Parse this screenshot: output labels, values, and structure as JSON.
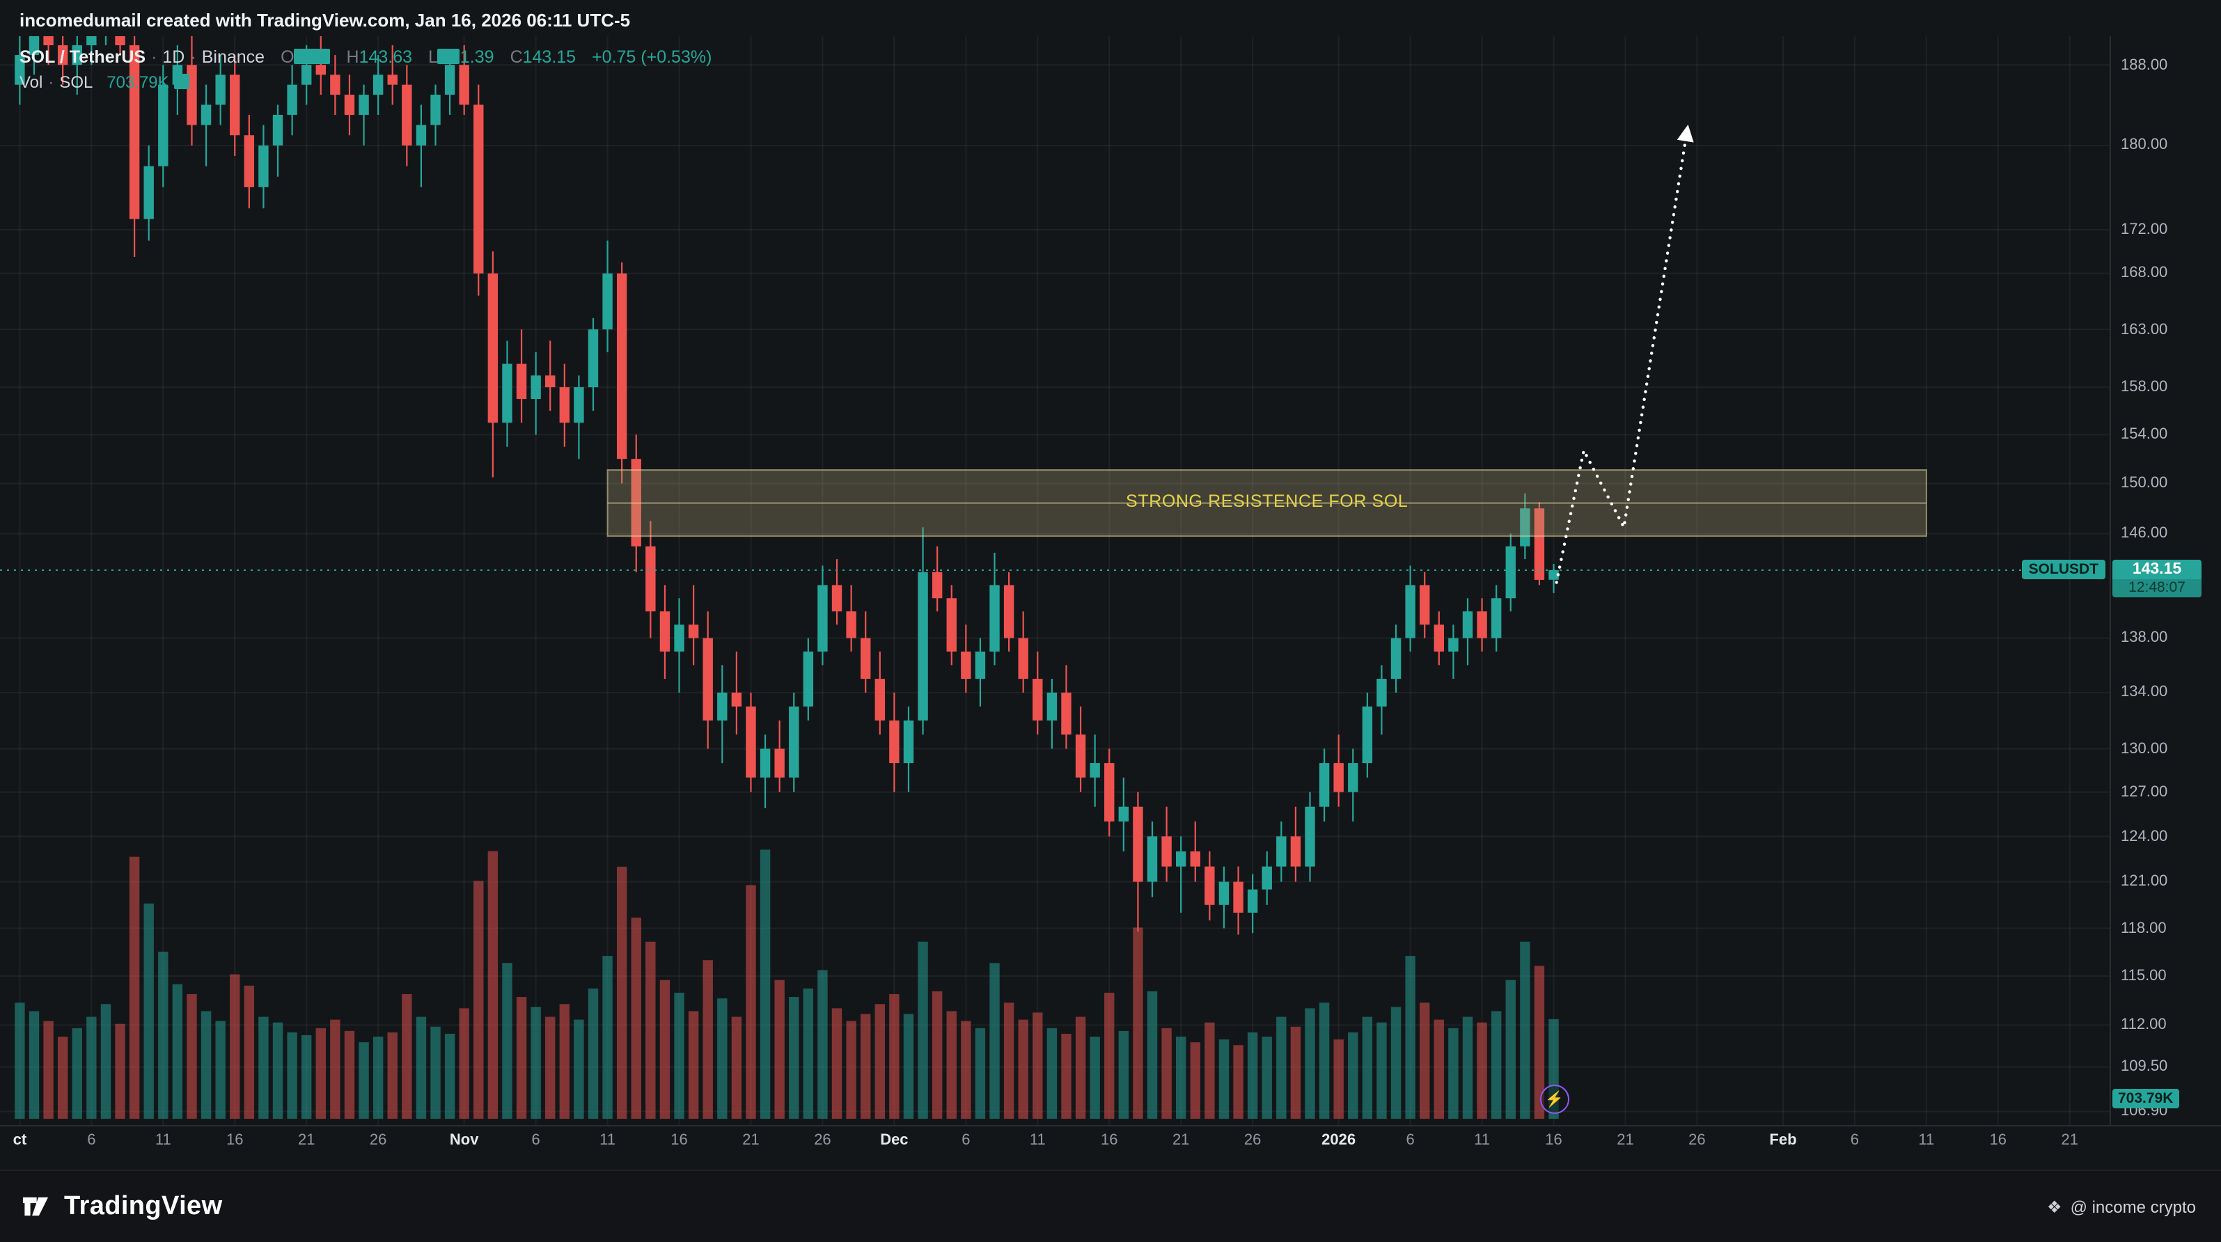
{
  "header": {
    "title": "incomedumail created with TradingView.com, Jan 16, 2026 06:11 UTC-5"
  },
  "legend": {
    "symbol": "SOL / TetherUS",
    "separator": "·",
    "timeframe": "1D",
    "exchange": "Binance",
    "o_label": "O",
    "h_label": "H",
    "h_value": "143.63",
    "l_label": "L",
    "l_value_visible": "1.39",
    "c_label": "C",
    "c_value": "143.15",
    "change": "+0.75 (+0.53%)",
    "vol_label": "Vol",
    "vol_symbol": "SOL",
    "vol_value": "703.79K"
  },
  "colors": {
    "up": "#26a69a",
    "down": "#ef5350",
    "vol_up": "rgba(38,166,154,0.5)",
    "vol_down": "rgba(239,83,80,0.5)",
    "accent": "#26a69a",
    "projection": "#ffffff",
    "box_fill": "rgba(170,160,115,0.32)",
    "box_edge": "rgba(225,215,160,0.55)",
    "resistance_text": "#e5d44a"
  },
  "price_axis": {
    "labels": [
      {
        "text": "188.00",
        "price": 188
      },
      {
        "text": "180.00",
        "price": 180
      },
      {
        "text": "172.00",
        "price": 172
      },
      {
        "text": "168.00",
        "price": 168
      },
      {
        "text": "163.00",
        "price": 163
      },
      {
        "text": "158.00",
        "price": 158
      },
      {
        "text": "154.00",
        "price": 154
      },
      {
        "text": "150.00",
        "price": 150
      },
      {
        "text": "146.00",
        "price": 146
      },
      {
        "text": "138.00",
        "price": 138
      },
      {
        "text": "134.00",
        "price": 134
      },
      {
        "text": "130.00",
        "price": 130
      },
      {
        "text": "127.00",
        "price": 127
      },
      {
        "text": "124.00",
        "price": 124
      },
      {
        "text": "121.00",
        "price": 121
      },
      {
        "text": "118.00",
        "price": 118
      },
      {
        "text": "115.00",
        "price": 115
      },
      {
        "text": "112.00",
        "price": 112
      },
      {
        "text": "109.50",
        "price": 109.5
      },
      {
        "text": "106.90",
        "price": 106.9
      }
    ],
    "current": {
      "symbol": "SOLUSDT",
      "price": "143.15",
      "price_value": 143.15,
      "countdown": "12:48:07"
    },
    "volume_label": "703.79K"
  },
  "time_axis": {
    "ticks": [
      {
        "label": "ct",
        "index": 0,
        "major": true
      },
      {
        "label": "6",
        "index": 5
      },
      {
        "label": "11",
        "index": 10
      },
      {
        "label": "16",
        "index": 15
      },
      {
        "label": "21",
        "index": 20
      },
      {
        "label": "26",
        "index": 25
      },
      {
        "label": "Nov",
        "index": 31,
        "major": true
      },
      {
        "label": "6",
        "index": 36
      },
      {
        "label": "11",
        "index": 41
      },
      {
        "label": "16",
        "index": 46
      },
      {
        "label": "21",
        "index": 51
      },
      {
        "label": "26",
        "index": 56
      },
      {
        "label": "Dec",
        "index": 61,
        "major": true
      },
      {
        "label": "6",
        "index": 66
      },
      {
        "label": "11",
        "index": 71
      },
      {
        "label": "16",
        "index": 76
      },
      {
        "label": "21",
        "index": 81
      },
      {
        "label": "26",
        "index": 86
      },
      {
        "label": "2026",
        "index": 92,
        "major": true
      },
      {
        "label": "6",
        "index": 97
      },
      {
        "label": "11",
        "index": 102
      },
      {
        "label": "16",
        "index": 107
      },
      {
        "label": "21",
        "index": 112
      },
      {
        "label": "26",
        "index": 117
      },
      {
        "label": "Feb",
        "index": 123,
        "major": true
      },
      {
        "label": "6",
        "index": 128
      },
      {
        "label": "11",
        "index": 133
      },
      {
        "label": "16",
        "index": 138
      },
      {
        "label": "21",
        "index": 143
      }
    ]
  },
  "annotations": {
    "resistance_zone": {
      "label": "STRONG RESISTENCE FOR SOL",
      "price_top": 151.1,
      "price_bottom": 145.8,
      "start_index": 41,
      "end_index": 133
    },
    "projection": {
      "points": [
        {
          "index": 107.2,
          "price": 142.2
        },
        {
          "index": 109.1,
          "price": 152.7
        },
        {
          "index": 111.9,
          "price": 146.5
        },
        {
          "index": 116.3,
          "price": 181.4
        }
      ]
    },
    "latest_bar_index": 107
  },
  "chart_data": {
    "type": "candlestick",
    "symbol": "SOL/USDT",
    "exchange": "Binance",
    "timeframe": "1D",
    "price_scale": "log",
    "ylim": [
      106.5,
      195
    ],
    "start_date": "Oct 1",
    "end_date": "Jan 16, 2026",
    "columns": [
      "open",
      "high",
      "low",
      "close",
      "volume_k"
    ],
    "candles": [
      [
        186,
        191,
        184,
        189,
        820
      ],
      [
        189,
        193,
        187,
        191,
        760
      ],
      [
        191,
        194,
        188,
        190,
        690
      ],
      [
        190,
        192,
        186,
        188,
        580
      ],
      [
        188,
        191,
        185,
        190,
        640
      ],
      [
        190,
        193,
        188,
        192,
        720
      ],
      [
        192,
        195,
        190,
        193,
        810
      ],
      [
        193,
        194,
        189,
        190,
        670
      ],
      [
        190,
        192,
        169.5,
        173,
        1850
      ],
      [
        173,
        180,
        171,
        178,
        1520
      ],
      [
        178,
        188,
        176,
        186,
        1180
      ],
      [
        186,
        190,
        183,
        188,
        950
      ],
      [
        188,
        191,
        180,
        182,
        880
      ],
      [
        182,
        186,
        178,
        184,
        760
      ],
      [
        184,
        189,
        182,
        187,
        690
      ],
      [
        187,
        189,
        179,
        181,
        1020
      ],
      [
        181,
        183,
        174,
        176,
        940
      ],
      [
        176,
        182,
        174,
        180,
        720
      ],
      [
        180,
        184,
        177,
        183,
        680
      ],
      [
        183,
        188,
        181,
        186,
        610
      ],
      [
        186,
        190,
        184,
        188,
        590
      ],
      [
        188,
        191,
        185,
        187,
        640
      ],
      [
        187,
        189,
        183,
        185,
        700
      ],
      [
        185,
        187,
        181,
        183,
        620
      ],
      [
        183,
        186,
        180,
        185,
        540
      ],
      [
        185,
        189,
        183,
        187,
        580
      ],
      [
        187,
        190,
        184,
        186,
        610
      ],
      [
        186,
        188,
        178,
        180,
        880
      ],
      [
        180,
        184,
        176,
        182,
        720
      ],
      [
        182,
        186,
        180,
        185,
        650
      ],
      [
        185,
        189,
        183,
        188,
        600
      ],
      [
        188,
        190,
        183,
        184,
        780
      ],
      [
        184,
        186,
        166,
        168,
        1680
      ],
      [
        168,
        170,
        150.5,
        155,
        1890
      ],
      [
        155,
        162,
        153,
        160,
        1100
      ],
      [
        160,
        163,
        155,
        157,
        860
      ],
      [
        157,
        161,
        154,
        159,
        790
      ],
      [
        159,
        162,
        156,
        158,
        720
      ],
      [
        158,
        160,
        153,
        155,
        810
      ],
      [
        155,
        159,
        152,
        158,
        700
      ],
      [
        158,
        164,
        156,
        163,
        920
      ],
      [
        163,
        171,
        161,
        168,
        1150
      ],
      [
        168,
        169,
        150,
        152,
        1780
      ],
      [
        152,
        154,
        143,
        145,
        1420
      ],
      [
        145,
        147,
        138,
        140,
        1250
      ],
      [
        140,
        142,
        135,
        137,
        980
      ],
      [
        137,
        141,
        134,
        139,
        890
      ],
      [
        139,
        142,
        136,
        138,
        760
      ],
      [
        138,
        140,
        130,
        132,
        1120
      ],
      [
        132,
        136,
        129,
        134,
        850
      ],
      [
        134,
        137,
        131,
        133,
        720
      ],
      [
        133,
        134,
        127,
        128,
        1650
      ],
      [
        128,
        131,
        125.9,
        130,
        1900
      ],
      [
        130,
        132,
        127,
        128,
        980
      ],
      [
        128,
        134,
        127,
        133,
        860
      ],
      [
        133,
        138,
        132,
        137,
        920
      ],
      [
        137,
        143.5,
        136,
        142,
        1050
      ],
      [
        142,
        144,
        139,
        140,
        780
      ],
      [
        140,
        142,
        137,
        138,
        690
      ],
      [
        138,
        140,
        134,
        135,
        740
      ],
      [
        135,
        137,
        131,
        132,
        810
      ],
      [
        132,
        134,
        127,
        129,
        880
      ],
      [
        129,
        133,
        127,
        132,
        740
      ],
      [
        132,
        146.5,
        131,
        143,
        1250
      ],
      [
        143,
        145,
        140,
        141,
        900
      ],
      [
        141,
        142,
        136,
        137,
        760
      ],
      [
        137,
        139,
        134,
        135,
        690
      ],
      [
        135,
        138,
        133,
        137,
        640
      ],
      [
        137,
        144.5,
        136,
        142,
        1100
      ],
      [
        142,
        143,
        137,
        138,
        820
      ],
      [
        138,
        140,
        134,
        135,
        700
      ],
      [
        135,
        137,
        131,
        132,
        750
      ],
      [
        132,
        135,
        130,
        134,
        640
      ],
      [
        134,
        136,
        130,
        131,
        600
      ],
      [
        131,
        133,
        127,
        128,
        720
      ],
      [
        128,
        131,
        126,
        129,
        580
      ],
      [
        129,
        130,
        124,
        125,
        890
      ],
      [
        125,
        128,
        123,
        126,
        620
      ],
      [
        126,
        127,
        117.8,
        121,
        1350
      ],
      [
        121,
        125,
        120,
        124,
        900
      ],
      [
        124,
        126,
        121,
        122,
        640
      ],
      [
        122,
        124,
        119,
        123,
        580
      ],
      [
        123,
        125,
        121,
        122,
        540
      ],
      [
        122,
        123,
        118.5,
        119.5,
        680
      ],
      [
        119.5,
        122,
        118,
        121,
        560
      ],
      [
        121,
        122,
        117.6,
        119,
        520
      ],
      [
        119,
        121.5,
        117.7,
        120.5,
        610
      ],
      [
        120.5,
        123,
        119.5,
        122,
        580
      ],
      [
        122,
        125,
        121,
        124,
        720
      ],
      [
        124,
        126,
        121,
        122,
        650
      ],
      [
        122,
        127,
        121,
        126,
        780
      ],
      [
        126,
        130,
        125,
        129,
        820
      ],
      [
        129,
        131,
        126,
        127,
        560
      ],
      [
        127,
        130,
        125,
        129,
        610
      ],
      [
        129,
        134,
        128,
        133,
        720
      ],
      [
        133,
        136,
        131,
        135,
        680
      ],
      [
        135,
        139,
        134,
        138,
        790
      ],
      [
        138,
        143.5,
        137,
        142,
        1150
      ],
      [
        142,
        143,
        138,
        139,
        820
      ],
      [
        139,
        140,
        136,
        137,
        700
      ],
      [
        137,
        139,
        135,
        138,
        640
      ],
      [
        138,
        141,
        136,
        140,
        720
      ],
      [
        140,
        141,
        137,
        138,
        680
      ],
      [
        138,
        142,
        137,
        141,
        760
      ],
      [
        141,
        146,
        140,
        145,
        980
      ],
      [
        145,
        149.2,
        144,
        148,
        1250
      ],
      [
        148,
        148.5,
        142,
        142.4,
        1080
      ],
      [
        142.41,
        143.63,
        141.39,
        143.15,
        703.79
      ]
    ]
  },
  "footer": {
    "brand": "TradingView",
    "credit": "@ income crypto"
  }
}
